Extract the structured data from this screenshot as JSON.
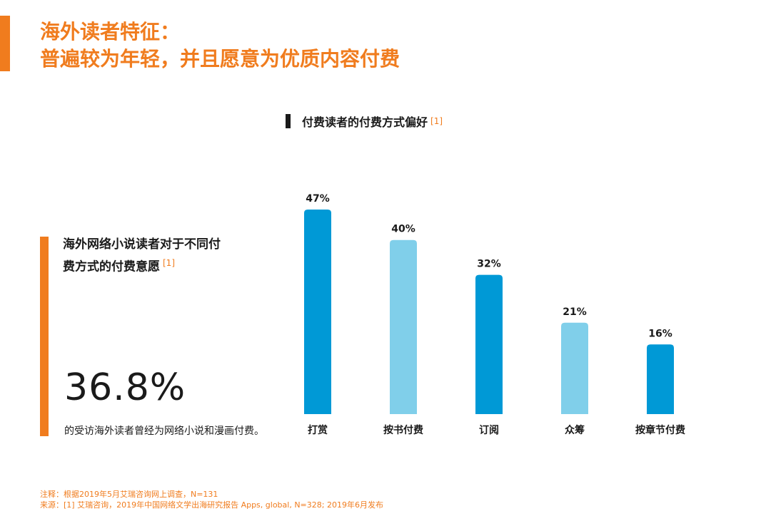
{
  "title": {
    "line1": "海外读者特征：",
    "line2": "普遍较为年轻，并且愿意为优质内容付费"
  },
  "chart_heading": {
    "text": "付费读者的付费方式偏好",
    "ref": "[1]"
  },
  "side_panel": {
    "heading_line1": "海外网络小说读者对于不同付",
    "heading_line2": "费方式的付费意愿",
    "ref": "[1]",
    "big_number": "36.8%",
    "description": "的受访海外读者曾经为网络小说和漫画付费。"
  },
  "chart_data": {
    "type": "bar",
    "categories": [
      "打赏",
      "按书付费",
      "订阅",
      "众筹",
      "按章节付费"
    ],
    "values": [
      47,
      40,
      32,
      21,
      16
    ],
    "value_labels": [
      "47%",
      "40%",
      "32%",
      "21%",
      "16%"
    ],
    "colors": [
      "#0099d6",
      "#80cfea",
      "#0099d6",
      "#80cfea",
      "#0099d6"
    ],
    "title": "付费读者的付费方式偏好",
    "xlabel": "",
    "ylabel": "",
    "ylim": [
      0,
      47
    ],
    "grid": false
  },
  "notes": {
    "line1": "注释：根据2019年5月艾瑞咨询网上调查，N=131",
    "line2": "来源：[1] 艾瑞咨询，2019年中国网络文学出海研究报告 Apps, global, N=328; 2019年6月发布"
  },
  "colors": {
    "accent": "#f07c1e",
    "bar_dark": "#0099d6",
    "bar_light": "#80cfea"
  }
}
